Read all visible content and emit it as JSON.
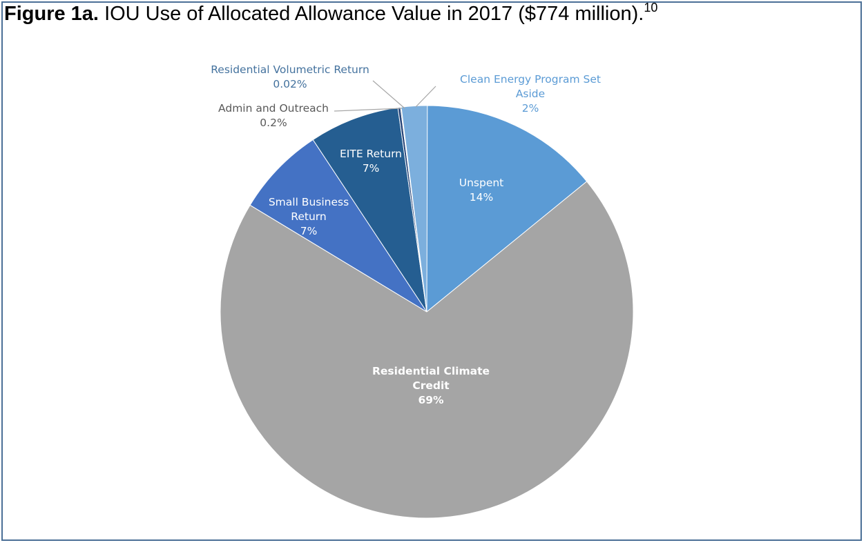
{
  "figure": {
    "label": "Figure 1a.",
    "title": "IOU Use of Allocated Allowance Value in 2017 ($774 million).",
    "footnote": "10"
  },
  "chart_data": {
    "type": "pie",
    "title": "IOU Use of Allocated Allowance Value in 2017 ($774 million).",
    "start": "top, clockwise",
    "slices": [
      {
        "label": "Unspent",
        "value": 14,
        "value_label": "14%",
        "color": "#5b9bd5",
        "label_color": "#ffffff"
      },
      {
        "label": "Residential Climate Credit",
        "value": 69,
        "value_label": "69%",
        "color": "#a5a5a5",
        "label_color": "#ffffff"
      },
      {
        "label": "Small Business Return",
        "value": 7,
        "value_label": "7%",
        "color": "#4472c4",
        "label_color": "#ffffff"
      },
      {
        "label": "EITE Return",
        "value": 7,
        "value_label": "7%",
        "color": "#255e91",
        "label_color": "#ffffff"
      },
      {
        "label": "Admin and Outreach",
        "value": 0.2,
        "value_label": "0.2%",
        "color": "#264478",
        "label_color": "#595959"
      },
      {
        "label": "Residential Volumetric Return",
        "value": 0.02,
        "value_label": "0.02%",
        "color": "#636363",
        "label_color": "#44729e"
      },
      {
        "label": "Clean Energy Program Set Aside",
        "value": 2,
        "value_label": "2%",
        "color": "#7cafdd",
        "label_color": "#5b9bd5"
      }
    ]
  }
}
